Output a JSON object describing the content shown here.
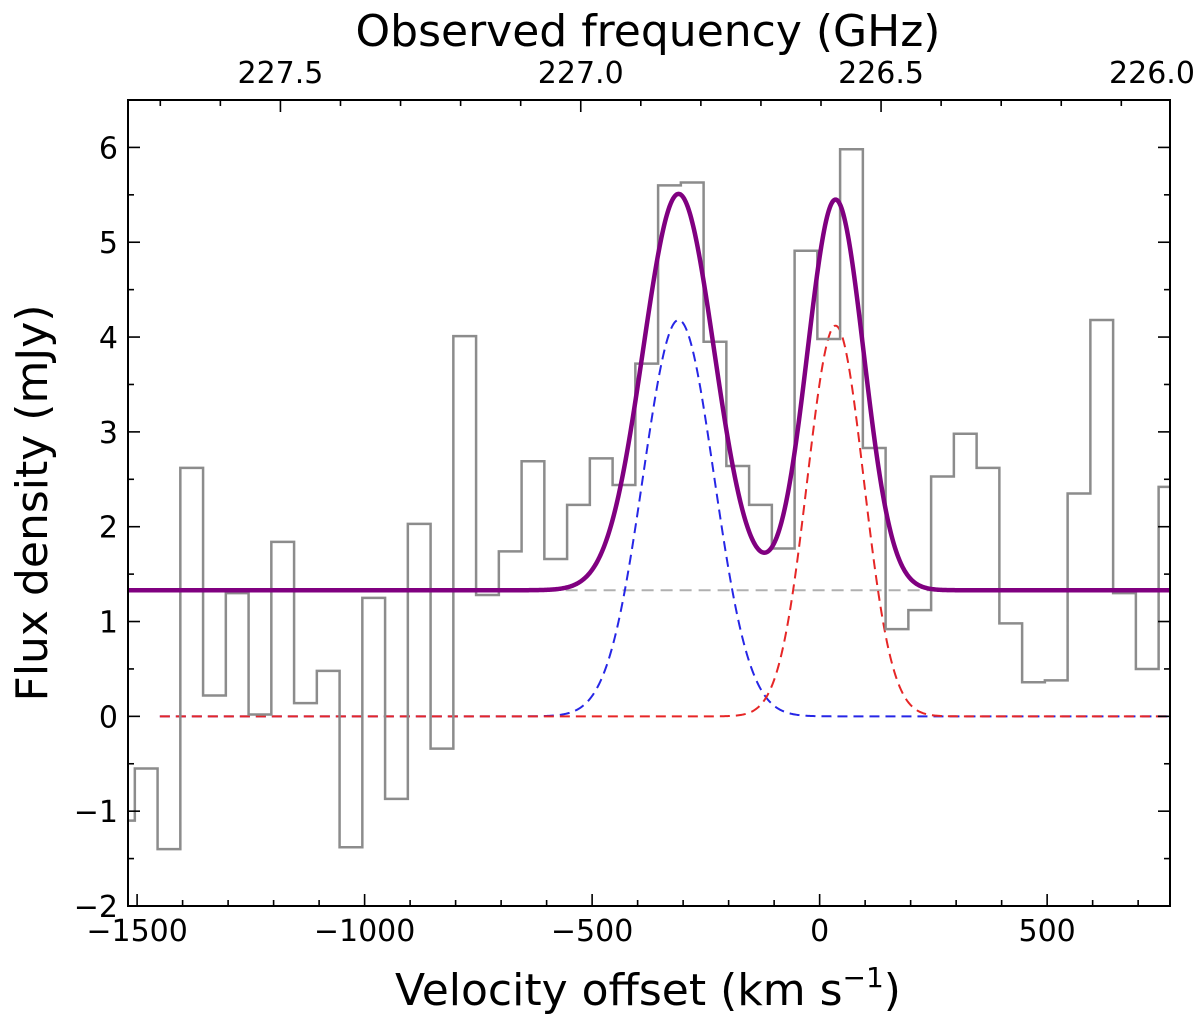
{
  "chart_data": {
    "type": "line",
    "title": "",
    "xlabel": "Velocity offset (km s",
    "xlabel_sup": "−1",
    "xlabel_close": ")",
    "ylabel": "Flux density (mJy)",
    "top_xlabel": "Observed frequency (GHz)",
    "xlim": [
      -1520,
      770
    ],
    "ylim": [
      -2,
      6.5
    ],
    "x_ticks": [
      {
        "value": -1500,
        "label": "−1500"
      },
      {
        "value": -1000,
        "label": "−1000"
      },
      {
        "value": -500,
        "label": "−500"
      },
      {
        "value": 0,
        "label": "0"
      },
      {
        "value": 500,
        "label": "500"
      }
    ],
    "y_ticks": [
      {
        "value": -2,
        "label": "−2"
      },
      {
        "value": -1,
        "label": "−1"
      },
      {
        "value": 0,
        "label": "0"
      },
      {
        "value": 1,
        "label": "1"
      },
      {
        "value": 2,
        "label": "2"
      },
      {
        "value": 3,
        "label": "3"
      },
      {
        "value": 4,
        "label": "4"
      },
      {
        "value": 5,
        "label": "5"
      },
      {
        "value": 6,
        "label": "6"
      }
    ],
    "top_ticks": [
      {
        "value": -1185,
        "label": "227.5"
      },
      {
        "value": -525,
        "label": "227.0"
      },
      {
        "value": 135,
        "label": "226.5"
      },
      {
        "value": 795,
        "label": "226.0"
      }
    ],
    "spectrum": {
      "name": "",
      "color": "#8c8c8c",
      "step_edges": [
        -1520,
        -1505,
        -1455,
        -1405,
        -1355,
        -1305,
        -1255,
        -1205,
        -1155,
        -1105,
        -1055,
        -1005,
        -955,
        -905,
        -855,
        -805,
        -755,
        -705,
        -655,
        -605,
        -555,
        -505,
        -455,
        -405,
        -355,
        -305,
        -255,
        -205,
        -155,
        -105,
        -55,
        -5,
        45,
        95,
        145,
        195,
        245,
        295,
        345,
        395,
        445,
        495,
        545,
        595,
        645,
        695,
        745,
        770
      ],
      "values": [
        -1.1,
        -0.55,
        -1.4,
        2.62,
        0.22,
        1.3,
        0.02,
        1.84,
        0.14,
        0.48,
        -1.38,
        1.25,
        -0.87,
        2.03,
        -0.34,
        4.01,
        1.28,
        1.74,
        2.69,
        1.66,
        2.23,
        2.72,
        2.44,
        3.72,
        5.6,
        5.63,
        3.95,
        2.64,
        2.23,
        1.77,
        4.91,
        3.98,
        5.98,
        2.83,
        0.92,
        1.12,
        2.53,
        2.98,
        2.62,
        0.98,
        0.36,
        0.38,
        2.35,
        4.18,
        1.3,
        0.5,
        2.42
      ]
    },
    "model": {
      "name": "",
      "continuum": 1.33,
      "color": "#800080",
      "components": [
        {
          "name": "",
          "amplitude": 4.18,
          "center": -310,
          "sigma": 78,
          "color": "#2626e6"
        },
        {
          "name": "",
          "amplitude": 4.12,
          "center": 35,
          "sigma": 62,
          "color": "#e62626"
        }
      ]
    },
    "continuum_line": {
      "value": 1.33,
      "x_range": [
        -600,
        770
      ],
      "color": "#b0b0b0"
    },
    "grid": false,
    "legend": "none"
  }
}
